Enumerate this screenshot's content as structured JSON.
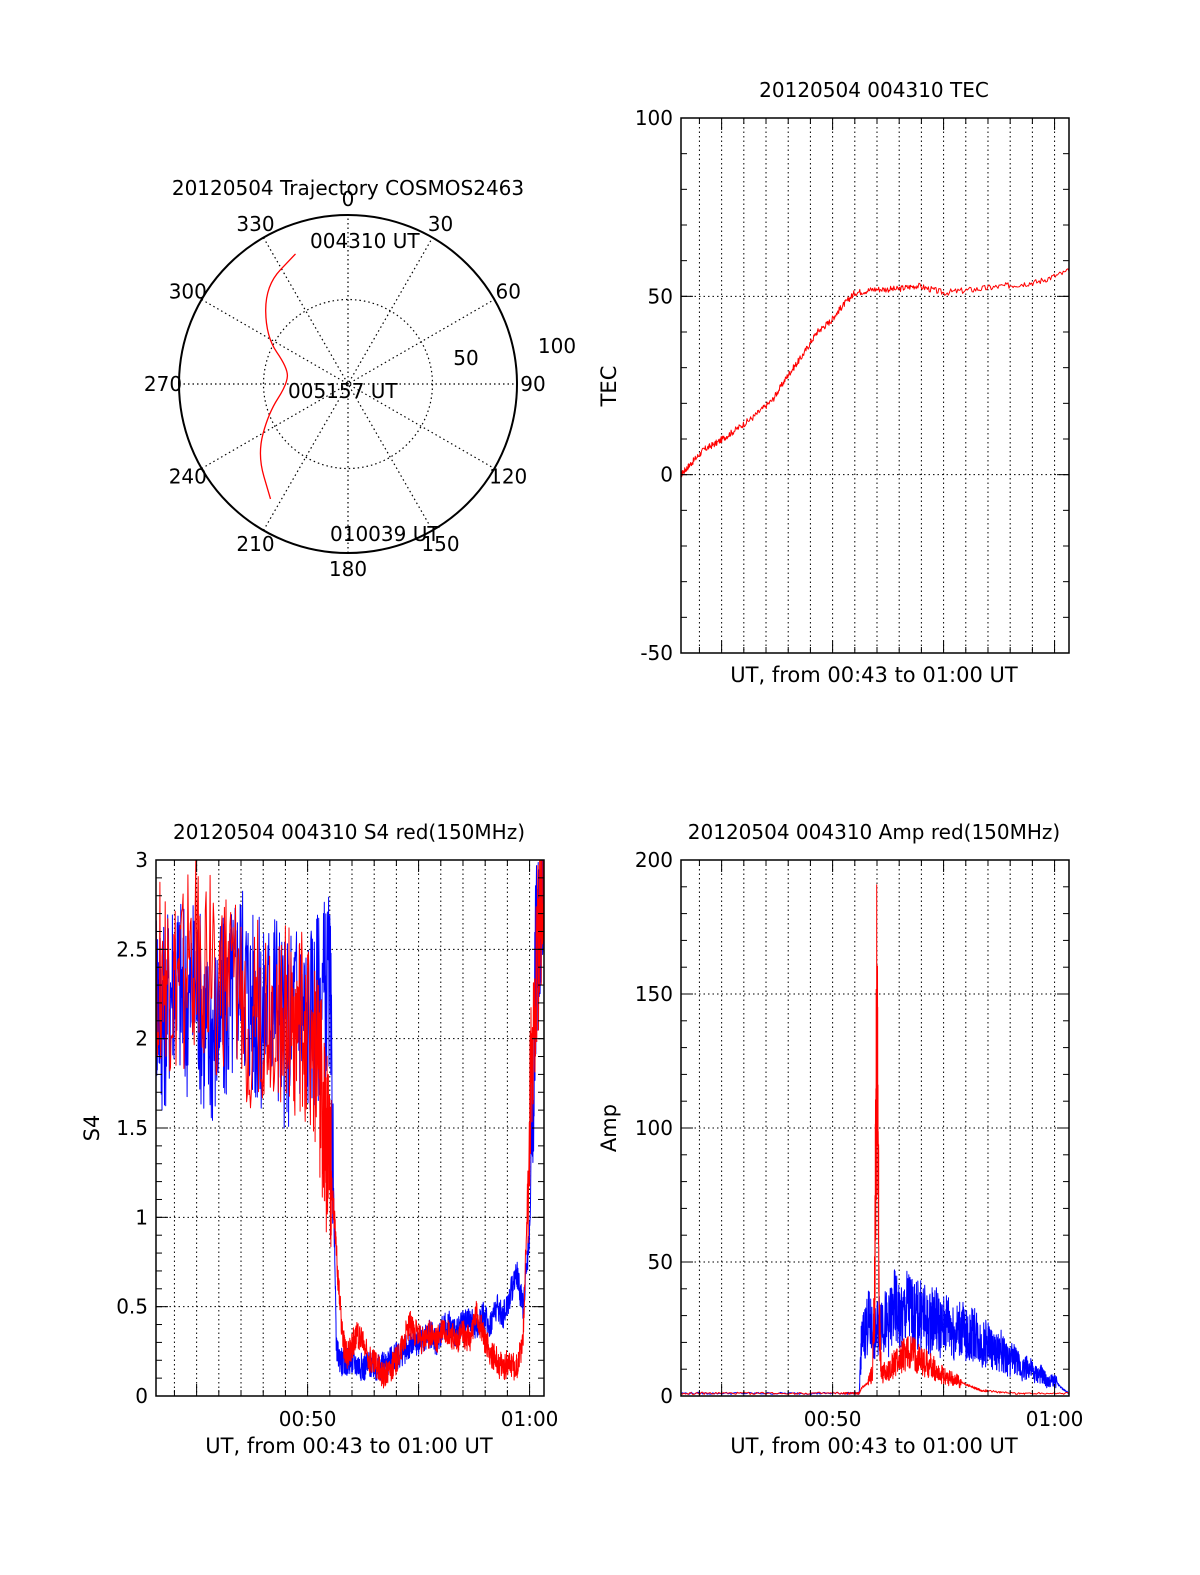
{
  "colors": {
    "red": "#ff0000",
    "blue": "#0000ff",
    "axis": "#000000"
  },
  "chart_data": [
    {
      "type": "polar",
      "title": "20120504 Trajectory COSMOS2463",
      "azimuth_labels": [
        "0",
        "30",
        "60",
        "90",
        "120",
        "150",
        "180",
        "210",
        "240",
        "270",
        "300",
        "330"
      ],
      "radial_labels": [
        "50",
        "100"
      ],
      "annotations": {
        "start": "004310 UT",
        "mid": "005157 UT",
        "end": "010039 UT"
      },
      "trajectory": {
        "color": "red",
        "points": [
          [
            338,
            83
          ],
          [
            320,
            76
          ],
          [
            300,
            56
          ],
          [
            285,
            37
          ],
          [
            270,
            36
          ],
          [
            250,
            50
          ],
          [
            232,
            68
          ],
          [
            214,
            82
          ]
        ]
      }
    },
    {
      "type": "line",
      "title": "20120504 004310 TEC",
      "xlabel": "UT, from 00:43 to 01:00 UT",
      "ylabel": "TEC",
      "xlim": [
        43.17,
        60.65
      ],
      "ylim": [
        -50,
        100
      ],
      "yticks": [
        "-50",
        "0",
        "50",
        "100"
      ],
      "grid": true,
      "series": [
        {
          "color": "red",
          "x": [
            43.17,
            43.6,
            44.2,
            44.8,
            45.5,
            46.4,
            47.3,
            48.0,
            48.6,
            49.3,
            49.9,
            50.4,
            51.0,
            51.9,
            52.9,
            53.8,
            55.0,
            56.5,
            57.9,
            59.2,
            60.65
          ],
          "y": [
            0,
            3,
            7,
            9,
            12,
            16,
            21,
            28,
            33,
            40,
            43,
            47,
            51,
            52,
            52,
            53,
            51,
            52,
            53,
            54,
            57
          ]
        }
      ]
    },
    {
      "type": "line",
      "title": "20120504 004310 S4 red(150MHz)",
      "xlabel": "UT, from 00:43 to 01:00 UT",
      "ylabel": "S4",
      "xlim": [
        43.17,
        60.65
      ],
      "ylim": [
        0,
        3
      ],
      "yticks": [
        "0",
        "0.5",
        "1",
        "1.5",
        "2",
        "2.5",
        "3"
      ],
      "xticks": [
        {
          "value": 50,
          "label": "00:50"
        },
        {
          "value": 60,
          "label": "01:00"
        }
      ],
      "grid": true,
      "series": [
        {
          "color": "blue",
          "x": [
            43.17,
            43.5,
            44.0,
            44.5,
            45.0,
            45.5,
            46.0,
            46.5,
            47.0,
            47.5,
            48.0,
            48.5,
            49.0,
            49.5,
            50.0,
            50.5,
            51.0,
            51.3,
            51.6,
            51.9,
            52.2,
            52.5,
            52.8,
            53.1,
            53.4,
            53.7,
            54.0,
            54.3,
            54.6,
            54.9,
            55.2,
            55.5,
            55.8,
            56.1,
            56.4,
            56.7,
            57.0,
            57.3,
            57.6,
            57.9,
            58.2,
            58.5,
            58.8,
            59.1,
            59.4,
            59.7,
            60.0,
            60.3,
            60.65
          ],
          "y": [
            2.3,
            2.1,
            2.4,
            2.2,
            2.3,
            2.0,
            2.1,
            2.2,
            2.4,
            2.2,
            2.1,
            2.3,
            2.0,
            2.2,
            2.1,
            2.2,
            2.3,
            0.25,
            0.18,
            0.2,
            0.18,
            0.16,
            0.18,
            0.15,
            0.17,
            0.2,
            0.22,
            0.25,
            0.28,
            0.3,
            0.32,
            0.35,
            0.3,
            0.38,
            0.4,
            0.35,
            0.4,
            0.42,
            0.38,
            0.45,
            0.4,
            0.5,
            0.45,
            0.55,
            0.7,
            0.5,
            0.9,
            2.5,
            3.0
          ]
        },
        {
          "color": "red",
          "x": [
            43.17,
            44.0,
            45.0,
            46.0,
            47.0,
            48.0,
            49.0,
            49.5,
            50.0,
            50.5,
            50.8,
            51.0,
            51.2,
            51.4,
            51.6,
            51.8,
            52.0,
            52.2,
            52.5,
            52.8,
            53.1,
            53.4,
            53.7,
            54.0,
            54.3,
            54.6,
            54.9,
            55.2,
            55.5,
            55.8,
            56.1,
            56.4,
            56.7,
            57.0,
            57.3,
            57.6,
            57.9,
            58.2,
            58.5,
            58.8,
            59.1,
            59.4,
            59.7,
            60.0,
            60.3,
            60.65
          ],
          "y": [
            2.4,
            2.2,
            2.5,
            2.3,
            2.2,
            2.1,
            2.2,
            2.0,
            2.1,
            1.8,
            1.5,
            1.3,
            1.0,
            0.6,
            0.3,
            0.22,
            0.28,
            0.35,
            0.3,
            0.2,
            0.18,
            0.12,
            0.15,
            0.2,
            0.3,
            0.4,
            0.35,
            0.3,
            0.35,
            0.3,
            0.38,
            0.35,
            0.3,
            0.35,
            0.32,
            0.45,
            0.35,
            0.25,
            0.2,
            0.15,
            0.2,
            0.15,
            0.3,
            1.5,
            2.5,
            2.8
          ]
        }
      ]
    },
    {
      "type": "line",
      "title": "20120504 004310 Amp red(150MHz)",
      "xlabel": "UT, from 00:43 to 01:00 UT",
      "ylabel": "Amp",
      "xlim": [
        43.17,
        60.65
      ],
      "ylim": [
        0,
        200
      ],
      "yticks": [
        "0",
        "50",
        "100",
        "150",
        "200"
      ],
      "xticks": [
        {
          "value": 50,
          "label": "00:50"
        },
        {
          "value": 60,
          "label": "01:00"
        }
      ],
      "grid": true,
      "series": [
        {
          "color": "blue",
          "x": [
            43.17,
            45.0,
            47.0,
            49.0,
            50.5,
            51.0,
            51.2,
            51.3,
            51.6,
            51.9,
            52.2,
            52.5,
            52.8,
            53.1,
            53.4,
            53.7,
            54.0,
            54.3,
            54.6,
            54.9,
            55.2,
            55.5,
            55.8,
            56.1,
            56.4,
            56.7,
            57.0,
            57.3,
            57.6,
            57.9,
            58.2,
            58.5,
            58.8,
            59.1,
            59.4,
            59.7,
            60.0,
            60.3,
            60.65
          ],
          "y": [
            1,
            1,
            1,
            1,
            1,
            1,
            1,
            20,
            28,
            22,
            30,
            26,
            33,
            28,
            34,
            29,
            31,
            26,
            30,
            25,
            28,
            23,
            26,
            21,
            24,
            19,
            20,
            16,
            17,
            13,
            14,
            10,
            11,
            8,
            8,
            5,
            6,
            3,
            1
          ]
        },
        {
          "color": "red",
          "x": [
            43.17,
            45.0,
            47.0,
            49.0,
            50.5,
            51.0,
            51.2,
            51.3,
            51.6,
            51.8,
            51.9,
            52.0,
            52.1,
            52.2,
            52.5,
            52.8,
            53.1,
            53.4,
            53.7,
            54.0,
            54.3,
            54.6,
            54.9,
            55.2,
            55.5,
            55.8,
            56.1,
            56.4,
            56.7,
            57.0,
            58.0,
            59.0,
            60.65
          ],
          "y": [
            1,
            1,
            1,
            1,
            1,
            1,
            1,
            3,
            5,
            10,
            40,
            163,
            30,
            8,
            10,
            12,
            14,
            16,
            15,
            13,
            12,
            10,
            8,
            7,
            6,
            5,
            4,
            3,
            2,
            2,
            1,
            1,
            1
          ]
        }
      ]
    }
  ]
}
